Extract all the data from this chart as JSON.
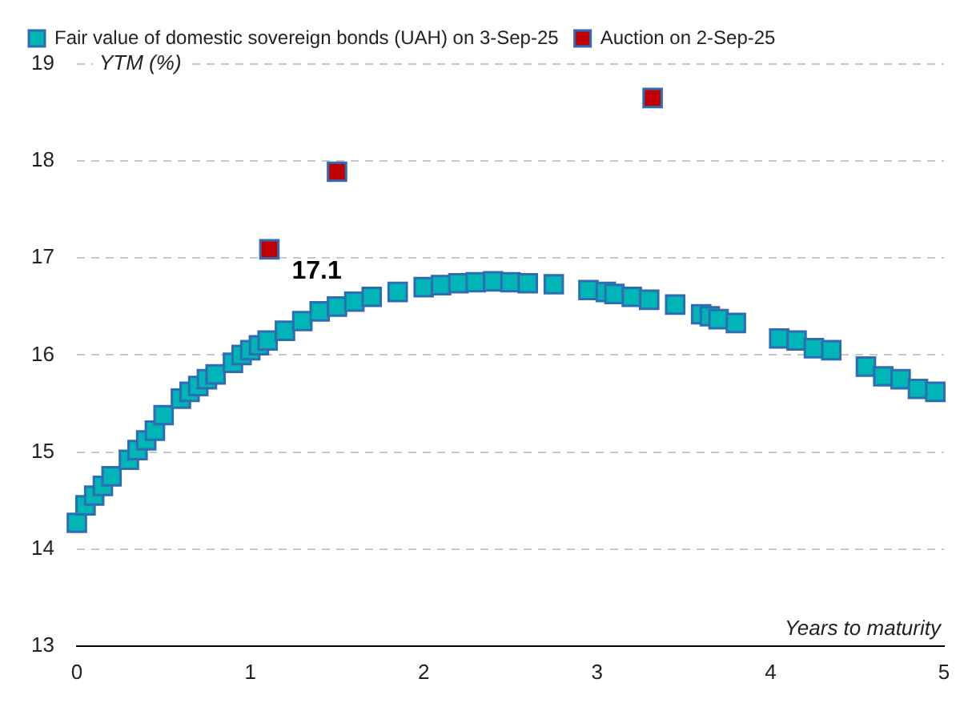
{
  "chart_data": {
    "type": "scatter",
    "xlabel": "Years to maturity",
    "ylabel": "YTM (%)",
    "xlim": [
      0,
      5
    ],
    "xticks": [
      0,
      1,
      2,
      3,
      4,
      5
    ],
    "ylim": [
      13,
      19
    ],
    "yticks": [
      13,
      14,
      15,
      16,
      17,
      18,
      19
    ],
    "grid": "y",
    "legend": "top",
    "marker": "square",
    "series": [
      {
        "name": "Fair value of domestic sovereign bonds (UAH) on 3-Sep-25",
        "color": "#00b5b5",
        "x": [
          0,
          0.05,
          0.1,
          0.15,
          0.2,
          0.3,
          0.35,
          0.4,
          0.45,
          0.5,
          0.6,
          0.65,
          0.7,
          0.75,
          0.8,
          0.9,
          0.95,
          1.0,
          1.05,
          1.1,
          1.2,
          1.3,
          1.4,
          1.5,
          1.6,
          1.7,
          1.85,
          2.0,
          2.1,
          2.2,
          2.3,
          2.4,
          2.5,
          2.6,
          2.75,
          2.95,
          3.05,
          3.1,
          3.2,
          3.3,
          3.45,
          3.6,
          3.65,
          3.7,
          3.8,
          4.05,
          4.15,
          4.25,
          4.35,
          4.55,
          4.65,
          4.75,
          4.85,
          4.95
        ],
        "values": [
          14.27,
          14.45,
          14.55,
          14.65,
          14.75,
          14.92,
          15.02,
          15.12,
          15.22,
          15.38,
          15.55,
          15.62,
          15.68,
          15.75,
          15.8,
          15.92,
          16.0,
          16.05,
          16.1,
          16.15,
          16.25,
          16.35,
          16.45,
          16.5,
          16.55,
          16.6,
          16.65,
          16.7,
          16.72,
          16.74,
          16.75,
          16.76,
          16.75,
          16.74,
          16.73,
          16.67,
          16.65,
          16.63,
          16.6,
          16.57,
          16.52,
          16.42,
          16.4,
          16.37,
          16.33,
          16.17,
          16.15,
          16.07,
          16.05,
          15.88,
          15.78,
          15.75,
          15.65,
          15.62
        ]
      },
      {
        "name": "Auction on 2-Sep-25",
        "color": "#c00000",
        "x": [
          1.11,
          1.5,
          3.32
        ],
        "values": [
          17.09,
          17.89,
          18.65
        ],
        "value_labels": [
          "17.1",
          null,
          null
        ]
      }
    ]
  }
}
